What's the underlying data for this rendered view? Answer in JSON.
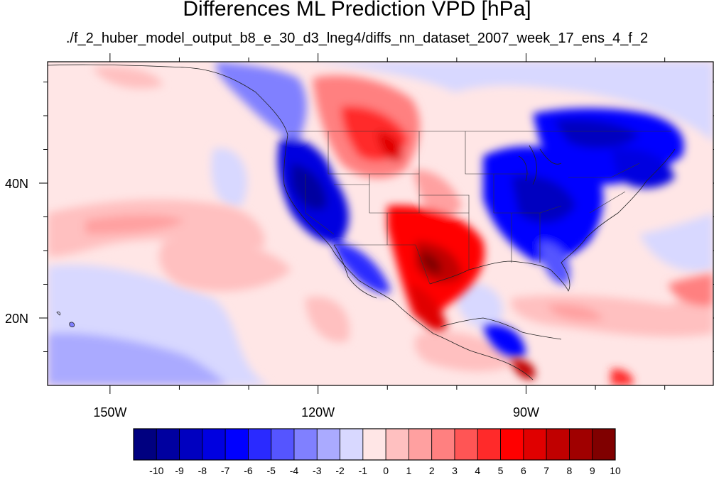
{
  "title": "Differences ML Prediction VPD [hPa]",
  "subtitle": "./f_2_huber_model_output_b8_e_30_d3_lneg4/diffs_nn_dataset_2007_week_17_ens_4_f_2",
  "map": {
    "lon_range": [
      -159,
      -63
    ],
    "lat_range": [
      10,
      58
    ],
    "x_ticks": [
      {
        "lon": -150,
        "label": "150W"
      },
      {
        "lon": -120,
        "label": "120W"
      },
      {
        "lon": -90,
        "label": "90W"
      }
    ],
    "y_ticks": [
      {
        "lat": 40,
        "label": "40N"
      },
      {
        "lat": 20,
        "label": "20N"
      }
    ]
  },
  "colorbar": {
    "levels": [
      "-10",
      "-9",
      "-8",
      "-7",
      "-6",
      "-5",
      "-4",
      "-3",
      "-2",
      "-1",
      "0",
      "1",
      "2",
      "3",
      "4",
      "5",
      "6",
      "7",
      "8",
      "9",
      "10"
    ],
    "colors": [
      "#000080",
      "#0000a0",
      "#0000c0",
      "#0000e0",
      "#0000ff",
      "#2a2aff",
      "#5555ff",
      "#8080ff",
      "#aaaaff",
      "#d8d8ff",
      "#ffe6e6",
      "#ffc0c0",
      "#ffa0a0",
      "#ff8080",
      "#ff5555",
      "#ff2a2a",
      "#ff0000",
      "#e00000",
      "#c00000",
      "#a00000",
      "#800000"
    ]
  }
}
